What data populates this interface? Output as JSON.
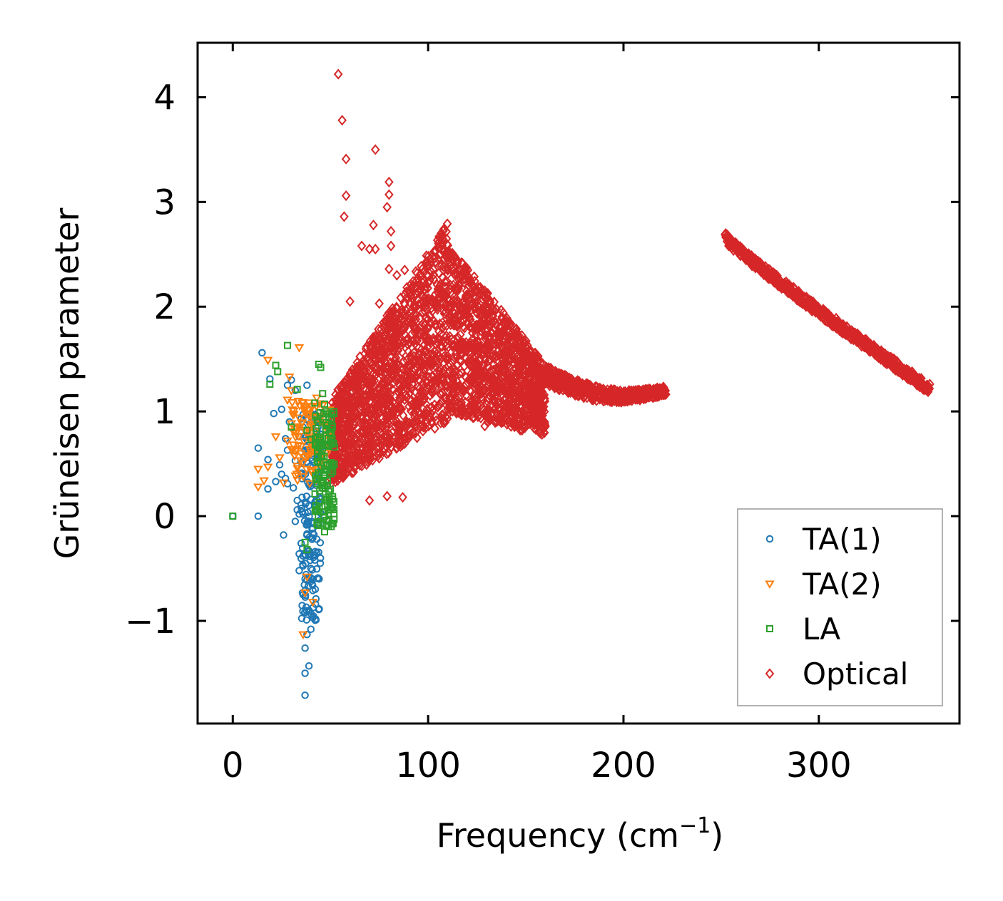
{
  "chart_data": {
    "type": "scatter",
    "title": "",
    "xlabel": "Frequency (cm",
    "xlabel_sup": "−1",
    "xlabel_close": ")",
    "ylabel": "Grüneisen parameter",
    "xlim": [
      -18,
      372
    ],
    "ylim": [
      -1.98,
      4.52
    ],
    "x_ticks": [
      0,
      100,
      200,
      300
    ],
    "x_tick_labels": [
      "0",
      "100",
      "200",
      "300"
    ],
    "y_ticks": [
      -1,
      0,
      1,
      2,
      3,
      4
    ],
    "y_tick_labels": [
      "−1",
      "0",
      "1",
      "2",
      "3",
      "4"
    ],
    "legend_position": "bottom-right",
    "series": [
      {
        "name": "TA(1)",
        "marker": "circle",
        "color": "#1f77b4",
        "points": [
          [
            0,
            0
          ],
          [
            13,
            0
          ],
          [
            15,
            1.56
          ],
          [
            13,
            0.65
          ],
          [
            19,
            1.31
          ],
          [
            18,
            0.54
          ],
          [
            18,
            0.26
          ],
          [
            21,
            0.98
          ],
          [
            22,
            0.33
          ],
          [
            24,
            0.49
          ],
          [
            25,
            1.02
          ],
          [
            25,
            0.4
          ],
          [
            26,
            -0.18
          ],
          [
            27,
            0.36
          ],
          [
            27,
            0.74
          ],
          [
            28,
            1.25
          ],
          [
            28,
            0.63
          ],
          [
            28,
            0.31
          ],
          [
            29,
            0.9
          ],
          [
            30,
            1.3
          ],
          [
            31,
            0.27
          ],
          [
            32,
            1.2
          ],
          [
            32,
            0.53
          ],
          [
            32,
            -0.05
          ],
          [
            33,
            0.15
          ],
          [
            33,
            0.06
          ],
          [
            34,
            0.76
          ],
          [
            34,
            0.02
          ],
          [
            34,
            -0.36
          ],
          [
            34,
            -0.52
          ],
          [
            35,
            0.11
          ],
          [
            35,
            0.93
          ],
          [
            35,
            0.4
          ],
          [
            35,
            -0.26
          ],
          [
            36,
            -0.38
          ],
          [
            36,
            0.97
          ],
          [
            36,
            0.02
          ],
          [
            36,
            -0.75
          ],
          [
            37,
            -0.92
          ],
          [
            37,
            -0.6
          ],
          [
            37,
            -1.26
          ],
          [
            37,
            -1.5
          ],
          [
            37,
            -1.71
          ],
          [
            38,
            0.73
          ],
          [
            38,
            1.25
          ],
          [
            38,
            -0.17
          ],
          [
            38,
            -1.13
          ],
          [
            39,
            -1.43
          ],
          [
            39,
            -0.33
          ],
          [
            39,
            -0.9
          ],
          [
            39,
            0.3
          ],
          [
            40,
            0.98
          ],
          [
            40,
            -0.5
          ],
          [
            40,
            -1.08
          ],
          [
            40,
            0.16
          ],
          [
            41,
            -0.12
          ],
          [
            41,
            0.54
          ],
          [
            41,
            -0.71
          ],
          [
            41,
            -0.97
          ],
          [
            42,
            0.09
          ],
          [
            42,
            -0.42
          ],
          [
            43,
            0.33
          ],
          [
            43,
            -0.22
          ],
          [
            44,
            0.12
          ],
          [
            44,
            -0.08
          ],
          [
            45,
            0.03
          ]
        ],
        "dense_cluster": {
          "x_range": [
            35,
            45
          ],
          "y_range": [
            -1.0,
            1.0
          ],
          "count": 150
        }
      },
      {
        "name": "TA(2)",
        "marker": "triangle-down",
        "color": "#ff7f0e",
        "points": [
          [
            18,
            1.49
          ],
          [
            34,
            1.61
          ],
          [
            13,
            0.45
          ],
          [
            13,
            0.28
          ],
          [
            16,
            0.34
          ],
          [
            18,
            0.47
          ],
          [
            22,
            0.76
          ],
          [
            24,
            0.56
          ],
          [
            26,
            0.32
          ],
          [
            28,
            0.72
          ],
          [
            28,
            1.11
          ],
          [
            29,
            1.33
          ],
          [
            30,
            1.2
          ],
          [
            31,
            0.81
          ],
          [
            32,
            0.62
          ],
          [
            33,
            0.48
          ],
          [
            34,
            0.94
          ],
          [
            35,
            0.67
          ],
          [
            36,
            0.51
          ],
          [
            37,
            1.03
          ],
          [
            37,
            0.82
          ],
          [
            38,
            0.58
          ],
          [
            39,
            0.98
          ],
          [
            40,
            0.71
          ],
          [
            41,
            0.87
          ],
          [
            42,
            0.61
          ],
          [
            43,
            1.13
          ],
          [
            44,
            0.74
          ],
          [
            45,
            0.52
          ],
          [
            46,
            1.06
          ],
          [
            47,
            0.88
          ],
          [
            36,
            -1.13
          ],
          [
            37,
            -0.73
          ],
          [
            38,
            -0.58
          ],
          [
            41,
            -0.82
          ]
        ],
        "dense_cluster": {
          "x_range": [
            30,
            50
          ],
          "y_range": [
            0.3,
            1.1
          ],
          "count": 90
        }
      },
      {
        "name": "LA",
        "marker": "square",
        "color": "#2ca02c",
        "points": [
          [
            0,
            0
          ],
          [
            19,
            1.26
          ],
          [
            22,
            1.44
          ],
          [
            23,
            1.38
          ],
          [
            28,
            1.63
          ],
          [
            30,
            0.85
          ],
          [
            33,
            1.21
          ],
          [
            38,
            0.82
          ],
          [
            40,
            0.73
          ],
          [
            42,
            1.08
          ],
          [
            44,
            1.45
          ],
          [
            45,
            1.42
          ],
          [
            46,
            1.17
          ],
          [
            47,
            1.07
          ],
          [
            48,
            -0.04
          ],
          [
            49,
            -0.1
          ],
          [
            50,
            0.83
          ],
          [
            51,
            0.08
          ],
          [
            47,
            -0.15
          ],
          [
            38,
            -0.32
          ],
          [
            37,
            -0.25
          ]
        ],
        "dense_cluster": {
          "x_range": [
            42,
            52
          ],
          "y_range": [
            -0.1,
            1.0
          ],
          "count": 130
        }
      },
      {
        "name": "Optical",
        "marker": "diamond",
        "color": "#d62728",
        "points": [
          [
            54,
            4.22
          ],
          [
            56,
            3.78
          ],
          [
            58,
            3.41
          ],
          [
            58,
            3.06
          ],
          [
            57,
            2.86
          ],
          [
            73,
            3.5
          ],
          [
            80,
            3.19
          ],
          [
            80,
            3.07
          ],
          [
            79,
            2.95
          ],
          [
            72,
            2.78
          ],
          [
            81,
            2.72
          ],
          [
            66,
            2.58
          ],
          [
            70,
            2.55
          ],
          [
            73,
            2.55
          ],
          [
            81,
            2.58
          ],
          [
            60,
            2.05
          ],
          [
            75,
            2.03
          ],
          [
            80,
            2.36
          ],
          [
            84,
            2.3
          ],
          [
            88,
            2.35
          ],
          [
            70,
            0.15
          ],
          [
            79,
            0.19
          ],
          [
            87,
            0.18
          ],
          [
            129,
            0.86
          ],
          [
            110,
            1.02
          ],
          [
            96,
            0.85
          ]
        ],
        "dense_bands": [
          {
            "x_range": [
              50,
              160
            ],
            "y_range": [
              0.2,
              2.8
            ],
            "peak_x": 110,
            "peak_y": 2.85
          },
          {
            "x_range": [
              160,
              222
            ],
            "y_range": [
              1.1,
              1.45
            ],
            "end_y": 1.22
          },
          {
            "x_range": [
              252,
              357
            ],
            "y_start": 2.68,
            "y_end": 1.21
          }
        ]
      }
    ]
  }
}
